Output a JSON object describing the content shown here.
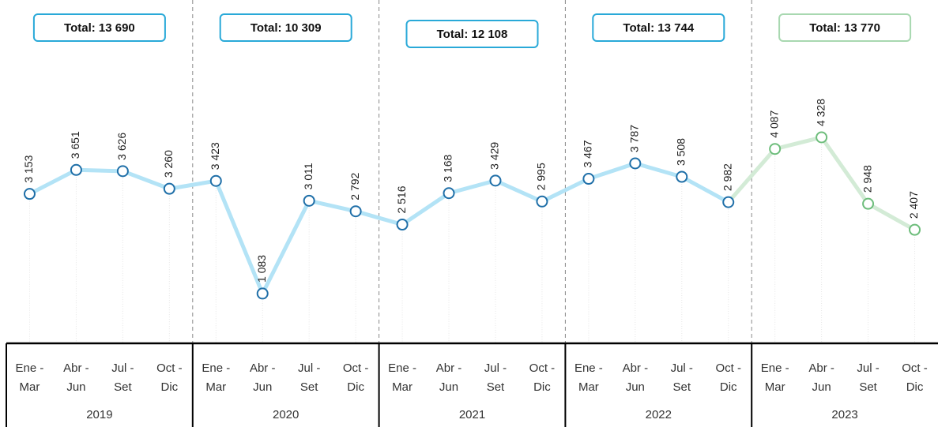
{
  "chart_data": {
    "type": "line",
    "categories": [
      [
        "Ene -",
        "Mar"
      ],
      [
        "Abr -",
        "Jun"
      ],
      [
        "Jul -",
        "Set"
      ],
      [
        "Oct -",
        "Dic"
      ],
      [
        "Ene -",
        "Mar"
      ],
      [
        "Abr -",
        "Jun"
      ],
      [
        "Jul -",
        "Set"
      ],
      [
        "Oct -",
        "Dic"
      ],
      [
        "Ene -",
        "Mar"
      ],
      [
        "Abr -",
        "Jun"
      ],
      [
        "Jul -",
        "Set"
      ],
      [
        "Oct -",
        "Dic"
      ],
      [
        "Ene -",
        "Mar"
      ],
      [
        "Abr -",
        "Jun"
      ],
      [
        "Jul -",
        "Set"
      ],
      [
        "Oct -",
        "Dic"
      ],
      [
        "Ene -",
        "Mar"
      ],
      [
        "Abr -",
        "Jun"
      ],
      [
        "Jul -",
        "Set"
      ],
      [
        "Oct -",
        "Dic"
      ]
    ],
    "values": [
      3153,
      3651,
      3626,
      3260,
      3423,
      1083,
      3011,
      2792,
      2516,
      3168,
      3429,
      2995,
      3467,
      3787,
      3508,
      2982,
      4087,
      4328,
      2948,
      2407
    ],
    "value_labels": [
      "3 153",
      "3 651",
      "3 626",
      "3 260",
      "3 423",
      "1 083",
      "3 011",
      "2 792",
      "2 516",
      "3 168",
      "3 429",
      "2 995",
      "3 467",
      "3 787",
      "3 508",
      "2 982",
      "4 087",
      "4 328",
      "2 948",
      "2 407"
    ],
    "ylim": [
      0,
      6000
    ],
    "groups": [
      {
        "label": "2019",
        "total": "Total: 13 690",
        "line_color": "#b3e3f6",
        "marker_color": "#1f6fa8",
        "box_color": "#29a9d8"
      },
      {
        "label": "2020",
        "total": "Total: 10 309",
        "line_color": "#b3e3f6",
        "marker_color": "#1f6fa8",
        "box_color": "#29a9d8"
      },
      {
        "label": "2021",
        "total": "Total: 12 108",
        "line_color": "#b3e3f6",
        "marker_color": "#1f6fa8",
        "box_color": "#29a9d8"
      },
      {
        "label": "2022",
        "total": "Total: 13 744",
        "line_color": "#b3e3f6",
        "marker_color": "#1f6fa8",
        "box_color": "#29a9d8"
      },
      {
        "label": "2023",
        "total": "Total: 13 770",
        "line_color": "#d3ebd6",
        "marker_color": "#6dbd7b",
        "box_color": "#a8d8b0"
      }
    ]
  }
}
